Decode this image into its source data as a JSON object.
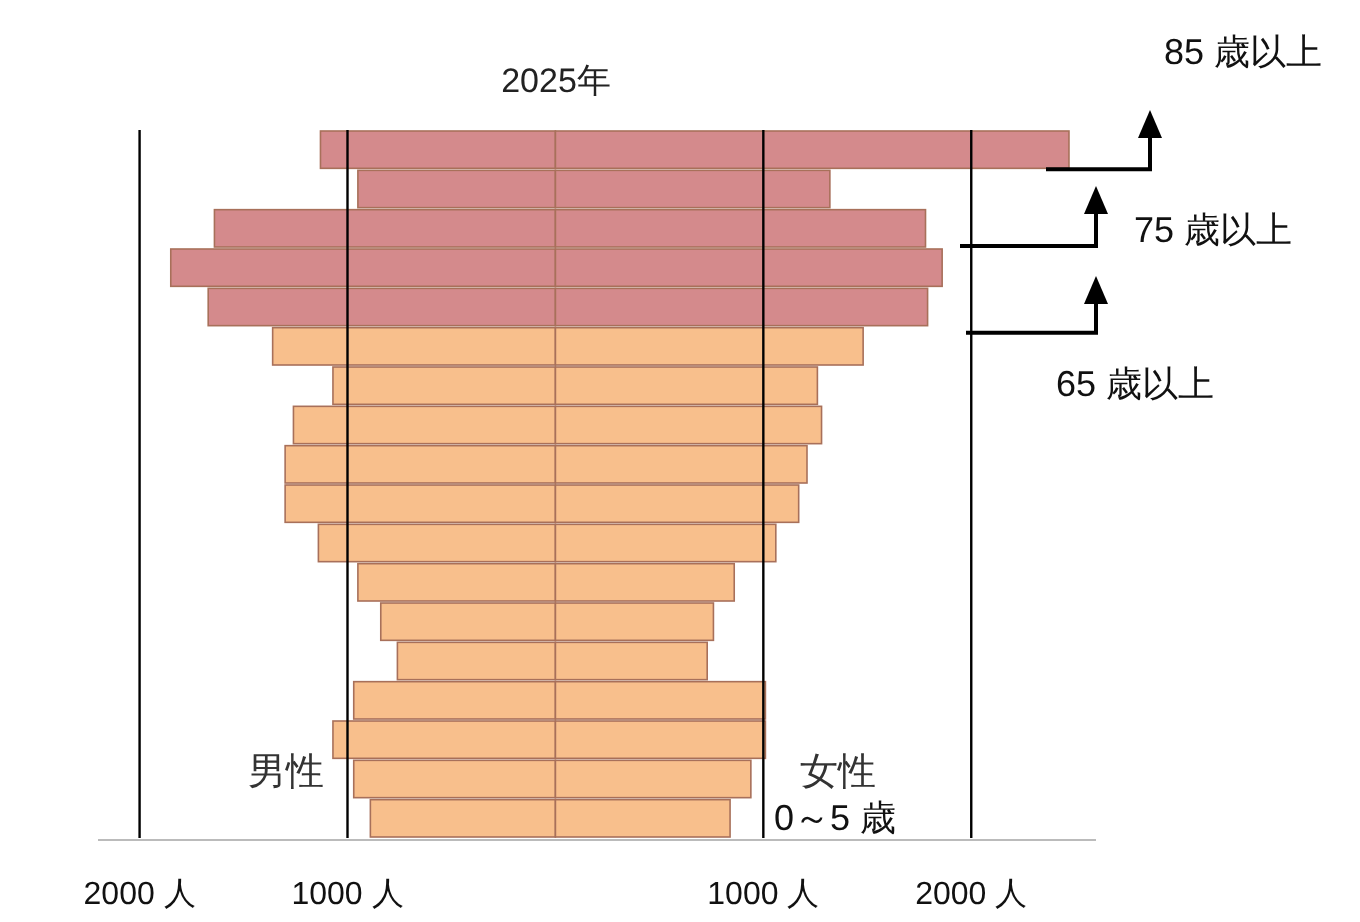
{
  "chart_data": {
    "type": "bar",
    "orientation": "horizontal",
    "stacked": true,
    "title": "2025年",
    "categories": [
      null,
      null,
      null,
      null,
      null,
      null,
      null,
      null,
      null,
      null,
      null,
      null,
      null,
      null,
      null,
      null,
      null,
      null
    ],
    "series": [
      {
        "name": "男性",
        "values": [
          -1130,
          -950,
          -1640,
          -1850,
          -1670,
          -1360,
          -1070,
          -1260,
          -1300,
          -1300,
          -1140,
          -950,
          -840,
          -760,
          -970,
          -1070,
          -970,
          -890
        ],
        "colors": [
          "#d48a8c",
          "#d48a8c",
          "#d48a8c",
          "#d48a8c",
          "#d48a8c",
          "#f8bf8c",
          "#f8bf8c",
          "#f8bf8c",
          "#f8bf8c",
          "#f8bf8c",
          "#f8bf8c",
          "#f8bf8c",
          "#f8bf8c",
          "#f8bf8c",
          "#f8bf8c",
          "#f8bf8c",
          "#f8bf8c",
          "#f8bf8c"
        ]
      },
      {
        "name": "女性",
        "values": [
          2470,
          1320,
          1780,
          1860,
          1790,
          1480,
          1260,
          1280,
          1210,
          1170,
          1060,
          860,
          760,
          730,
          1010,
          1010,
          940,
          840
        ],
        "colors": [
          "#d48a8c",
          "#d48a8c",
          "#d48a8c",
          "#d48a8c",
          "#d48a8c",
          "#f8bf8c",
          "#f8bf8c",
          "#f8bf8c",
          "#f8bf8c",
          "#f8bf8c",
          "#f8bf8c",
          "#f8bf8c",
          "#f8bf8c",
          "#f8bf8c",
          "#f8bf8c",
          "#f8bf8c",
          "#f8bf8c",
          "#f8bf8c"
        ]
      }
    ],
    "xlim": [
      -2200,
      2600
    ],
    "xticks": [
      {
        "value": -2000,
        "label": "2000 人"
      },
      {
        "value": -1000,
        "label": "1000 人"
      },
      {
        "value": 1000,
        "label": "1000 人"
      },
      {
        "value": 2000,
        "label": "2000 人"
      }
    ],
    "grid": "x",
    "annotations": [
      "65 歳以上",
      "75 歳以上",
      "85 歳以上",
      "0～5 歳"
    ]
  }
}
